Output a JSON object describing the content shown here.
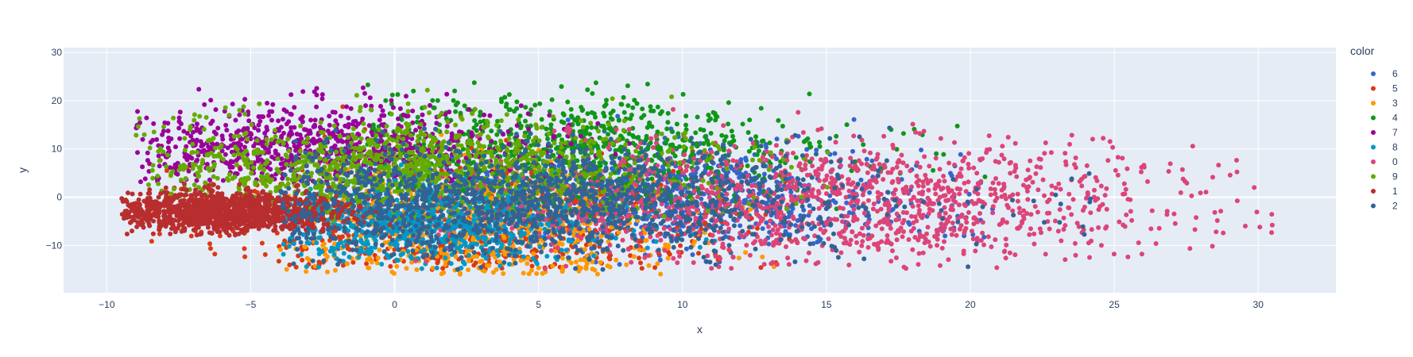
{
  "chart_data": {
    "type": "scatter",
    "title": "",
    "xlabel": "x",
    "ylabel": "y",
    "xlim": [
      -11.5,
      32.7
    ],
    "ylim": [
      -19.8,
      31.0
    ],
    "x_ticks": [
      -10,
      -5,
      0,
      5,
      10,
      15,
      20,
      25,
      30
    ],
    "y_ticks": [
      -10,
      0,
      10,
      20,
      30
    ],
    "x_tick_labels": [
      "−10",
      "−5",
      "0",
      "5",
      "10",
      "15",
      "20",
      "25",
      "30"
    ],
    "y_tick_labels": [
      "−10",
      "0",
      "10",
      "20",
      "30"
    ],
    "grid": true,
    "plot_background": "#E5ECF6",
    "grid_color": "#FFFFFF",
    "legend": {
      "title": "color",
      "placement": "top-right, outside plot"
    },
    "series": [
      {
        "name": "6",
        "color": "#3366CC",
        "x_range": [
          -2,
          21
        ],
        "y_range": [
          -14,
          17
        ],
        "x_center": 9.0,
        "y_center": 0.0,
        "approx_points": 900
      },
      {
        "name": "5",
        "color": "#DC3912",
        "x_range": [
          -9,
          14
        ],
        "y_range": [
          -15,
          23
        ],
        "x_center": 2.0,
        "y_center": -6.0,
        "approx_points": 900
      },
      {
        "name": "3",
        "color": "#FF9900",
        "x_range": [
          -4,
          14
        ],
        "y_range": [
          -16,
          22
        ],
        "x_center": 3.0,
        "y_center": -8.0,
        "approx_points": 800
      },
      {
        "name": "4",
        "color": "#109618",
        "x_range": [
          -1,
          21
        ],
        "y_range": [
          -5,
          25
        ],
        "x_center": 6.0,
        "y_center": 10.0,
        "approx_points": 900
      },
      {
        "name": "7",
        "color": "#990099",
        "x_range": [
          -9,
          9
        ],
        "y_range": [
          3,
          28
        ],
        "x_center": -3.0,
        "y_center": 10.0,
        "approx_points": 900
      },
      {
        "name": "8",
        "color": "#0099C6",
        "x_range": [
          -4,
          12
        ],
        "y_range": [
          -15,
          8
        ],
        "x_center": 1.0,
        "y_center": -5.0,
        "approx_points": 900
      },
      {
        "name": "0",
        "color": "#DD4477",
        "x_range": [
          0,
          30.5
        ],
        "y_range": [
          -15,
          20
        ],
        "x_center": 15.0,
        "y_center": -1.0,
        "approx_points": 1400
      },
      {
        "name": "9",
        "color": "#66AA00",
        "x_range": [
          -9,
          16
        ],
        "y_range": [
          -5,
          23
        ],
        "x_center": 0.0,
        "y_center": 6.0,
        "approx_points": 1200
      },
      {
        "name": "1",
        "color": "#B82E2E",
        "x_range": [
          -9.5,
          0
        ],
        "y_range": [
          -8,
          3
        ],
        "x_center": -6.0,
        "y_center": -3.0,
        "approx_points": 1400
      },
      {
        "name": "2",
        "color": "#316395",
        "x_range": [
          -4,
          25
        ],
        "y_range": [
          -15,
          15
        ],
        "x_center": 4.0,
        "y_center": -1.0,
        "approx_points": 1600
      }
    ]
  }
}
